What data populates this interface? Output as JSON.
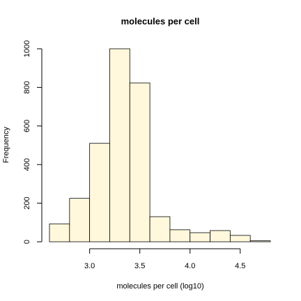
{
  "chart_data": {
    "type": "bar",
    "title": "molecules per cell",
    "xlabel": "molecules per cell (log10)",
    "ylabel": "Frequency",
    "bin_edges": [
      2.6,
      2.8,
      3.0,
      3.2,
      3.4,
      3.6,
      3.8,
      4.0,
      4.2,
      4.4,
      4.6,
      4.8
    ],
    "values": [
      93,
      225,
      510,
      1000,
      823,
      130,
      62,
      47,
      58,
      33,
      5
    ],
    "xticks": [
      "3.0",
      "3.5",
      "4.0",
      "4.5"
    ],
    "xtick_values": [
      3.0,
      3.5,
      4.0,
      4.5
    ],
    "yticks": [
      "0",
      "200",
      "400",
      "600",
      "800",
      "1000"
    ],
    "ytick_values": [
      0,
      200,
      400,
      600,
      800,
      1000
    ],
    "xlim": [
      2.6,
      4.8
    ],
    "ylim": [
      0,
      1000
    ],
    "bar_color": "#fff8dc",
    "grid": false
  }
}
